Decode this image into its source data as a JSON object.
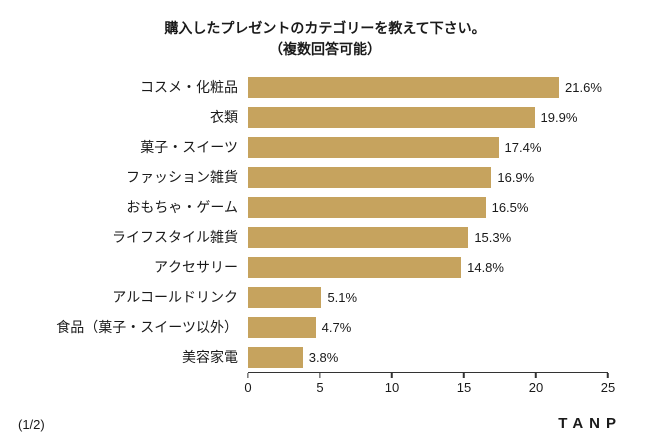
{
  "title": {
    "line1": "購入したプレゼントのカテゴリーを教えて下さい。",
    "line2": "（複数回答可能）"
  },
  "chart_data": {
    "type": "bar",
    "orientation": "horizontal",
    "title": "購入したプレゼントのカテゴリーを教えて下さい。（複数回答可能）",
    "categories": [
      "コスメ・化粧品",
      "衣類",
      "菓子・スイーツ",
      "ファッション雑貨",
      "おもちゃ・ゲーム",
      "ライフスタイル雑貨",
      "アクセサリー",
      "アルコールドリンク",
      "食品（菓子・スイーツ以外）",
      "美容家電"
    ],
    "values": [
      21.6,
      19.9,
      17.4,
      16.9,
      16.5,
      15.3,
      14.8,
      5.1,
      4.7,
      3.8
    ],
    "value_labels": [
      "21.6%",
      "19.9%",
      "17.4%",
      "16.9%",
      "16.5%",
      "15.3%",
      "14.8%",
      "5.1%",
      "4.7%",
      "3.8%"
    ],
    "xlabel": "",
    "ylabel": "",
    "xlim": [
      0,
      25
    ],
    "x_ticks": [
      0,
      5,
      10,
      15,
      20,
      25
    ],
    "bar_color": "#c6a35e",
    "grid": false,
    "legend": false
  },
  "footer": {
    "page_indicator": "(1/2)",
    "brand": "TANP"
  }
}
